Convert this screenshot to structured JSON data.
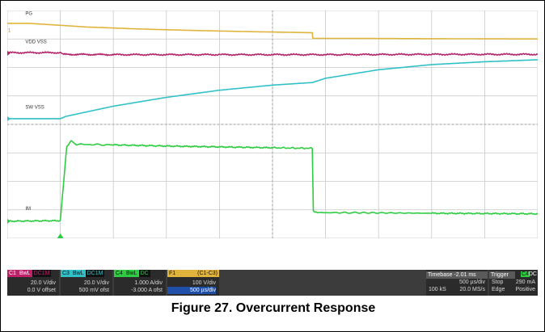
{
  "caption": "Figure 27. Overcurrent Response",
  "chart_data": {
    "type": "line",
    "title": "",
    "x_unit": "divisions",
    "xlim": [
      0,
      10
    ],
    "ylim": [
      0,
      8
    ],
    "grid": true,
    "series": [
      {
        "name": "PG",
        "color": "#e0b43c",
        "x": [
          0,
          0.4,
          1.0,
          1.5,
          2.5,
          3.5,
          4.5,
          5.75,
          5.76,
          6.5,
          8.0,
          10.0
        ],
        "y": [
          7.55,
          7.55,
          7.48,
          7.42,
          7.35,
          7.3,
          7.26,
          7.22,
          7.02,
          7.02,
          7.01,
          7.0
        ]
      },
      {
        "name": "VDD VSS",
        "color": "#b3256b",
        "x": [
          0,
          1.0,
          1.05,
          2.0,
          4.0,
          6.0,
          8.0,
          10.0
        ],
        "y": [
          6.52,
          6.52,
          6.46,
          6.45,
          6.45,
          6.45,
          6.46,
          6.46
        ],
        "noise": 0.03
      },
      {
        "name": "SW VSS",
        "color": "#30c0c8",
        "x": [
          0,
          1.0,
          1.1,
          2.0,
          3.0,
          4.0,
          5.0,
          5.75,
          6.0,
          7.0,
          8.0,
          9.0,
          10.0
        ],
        "y": [
          4.2,
          4.2,
          4.28,
          4.64,
          4.95,
          5.2,
          5.38,
          5.47,
          5.62,
          5.92,
          6.1,
          6.2,
          6.27
        ]
      },
      {
        "name": "IM",
        "color": "#2ecc40",
        "x": [
          0,
          1.0,
          1.12,
          1.2,
          1.3,
          2.0,
          3.0,
          4.0,
          5.0,
          5.75,
          5.77,
          5.85,
          6.5,
          8.0,
          10.0
        ],
        "y": [
          0.6,
          0.62,
          3.2,
          3.42,
          3.3,
          3.28,
          3.24,
          3.21,
          3.18,
          3.16,
          0.95,
          0.9,
          0.9,
          0.88,
          0.86
        ],
        "noise": 0.025
      }
    ],
    "series_labels": [
      "PG",
      "VDD VSS",
      "SW VSS",
      "IM"
    ],
    "marker": "1",
    "trigger_marker_x": 1.0
  },
  "readout": {
    "c1": {
      "tag": "C1",
      "mode": "BwL",
      "coupling": "DC1M",
      "scale": "20.0 V/div",
      "offset": "0.0 V offset"
    },
    "c3": {
      "tag": "C3",
      "mode": "BwL",
      "coupling": "DC1M",
      "scale": "20.0 V/div",
      "offset": "500 mV ofst"
    },
    "c4": {
      "tag": "C4",
      "mode": "BwL",
      "coupling": "DC",
      "scale": "1.000 A/div",
      "offset": "-3.000 A ofst"
    },
    "f1": {
      "tag": "F1",
      "expr": "(C1-C3)",
      "scale": "100 V/div",
      "time": "500 µs/div"
    },
    "timebase": {
      "label": "Timebase -2.01 ms",
      "div": "500 µs/div",
      "samples": "100 kS",
      "rate": "20.0 MS/s"
    },
    "trigger": {
      "label": "Trigger",
      "ch": "C4",
      "coupling": "DC",
      "mode": "Stop",
      "level": "290 mA",
      "type": "Edge",
      "slope": "Positive"
    }
  },
  "colors": {
    "c1": "#c0206a",
    "c3": "#30c0c8",
    "c4": "#2ecc40",
    "f1": "#e0b43c"
  }
}
